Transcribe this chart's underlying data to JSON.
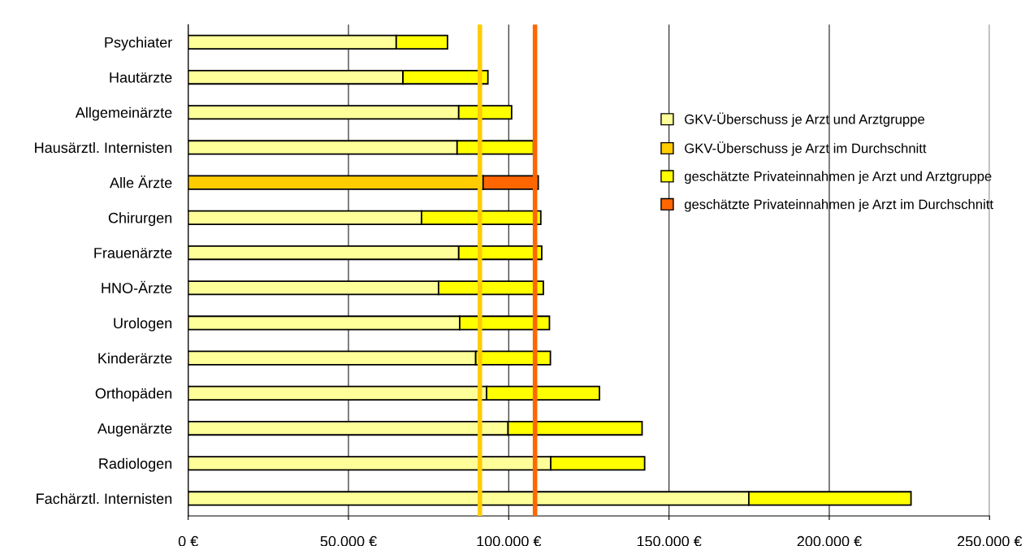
{
  "chart_data": {
    "type": "bar",
    "orientation": "horizontal",
    "stacked": true,
    "categories": [
      "Psychiater",
      "Hautärzte",
      "Allgemeinärzte",
      "Hausärztl. Internisten",
      "Alle Ärzte",
      "Chirurgen",
      "Frauenärzte",
      "HNO-Ärzte",
      "Urologen",
      "Kinderärzte",
      "Orthopäden",
      "Augenärzte",
      "Radiologen",
      "Fachärztl. Internisten"
    ],
    "series": [
      {
        "name": "GKV-Überschuss je Arzt und Arztgruppe",
        "color": "#ffff99",
        "values": [
          64900,
          67000,
          84400,
          83900,
          null,
          72800,
          84400,
          78100,
          84700,
          89700,
          93100,
          99800,
          113100,
          174900
        ]
      },
      {
        "name": "GKV-Überschuss je Arzt im Durchschnitt",
        "color": "#ffcc00",
        "values": [
          null,
          null,
          null,
          null,
          92000,
          null,
          null,
          null,
          null,
          null,
          null,
          null,
          null,
          null
        ]
      },
      {
        "name": "geschätzte Privateinnahmen je Arzt und Arztgruppe",
        "color": "#ffff00",
        "values": [
          16000,
          26500,
          16500,
          23800,
          null,
          37200,
          25900,
          32700,
          28000,
          23300,
          35200,
          41800,
          29300,
          50600
        ]
      },
      {
        "name": "geschätzte Privateinnahmen je Arzt im Durchschnitt",
        "color": "#ff6600",
        "values": [
          null,
          null,
          null,
          null,
          17200,
          null,
          null,
          null,
          null,
          null,
          null,
          null,
          null,
          null
        ]
      }
    ],
    "xlim": [
      0,
      250000
    ],
    "xticks": [
      {
        "value": 0,
        "label": "0 €"
      },
      {
        "value": 50000,
        "label": "50.000 €"
      },
      {
        "value": 100000,
        "label": "100.000 €"
      },
      {
        "value": 150000,
        "label": "150.000 €"
      },
      {
        "value": 200000,
        "label": "200.000 €"
      },
      {
        "value": 250000,
        "label": "250.000 €"
      }
    ],
    "ref_lines": [
      {
        "axis": "x",
        "value": 91000,
        "color": "#ffcc00"
      },
      {
        "axis": "x",
        "value": 108200,
        "color": "#ff6600"
      }
    ],
    "grid": "x",
    "legend": "right"
  }
}
